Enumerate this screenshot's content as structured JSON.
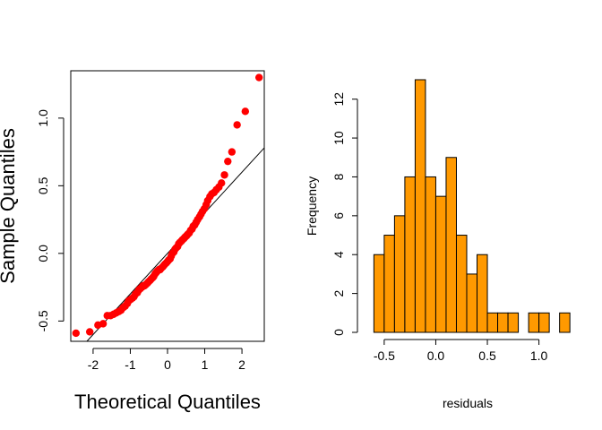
{
  "chart_data": [
    {
      "type": "scatter",
      "subtype": "qq-plot",
      "title": "",
      "xlabel": "Theoretical Quantiles",
      "ylabel": "Sample Quantiles",
      "xlim": [
        -2.6,
        2.6
      ],
      "ylim": [
        -0.65,
        1.35
      ],
      "xticks": [
        -2,
        -1,
        0,
        1,
        2
      ],
      "xtick_labels": [
        "-2",
        "-1",
        "0",
        "1",
        "2"
      ],
      "yticks": [
        -0.5,
        0.0,
        0.5,
        1.0
      ],
      "ytick_labels": [
        "-0.5",
        "0.0",
        "0.5",
        "1.0"
      ],
      "point_color": "#ff0000",
      "reference_line": {
        "intercept": 0.0,
        "slope": 0.3,
        "color": "#000000"
      },
      "points": [
        [
          -2.46,
          -0.59
        ],
        [
          -2.09,
          -0.58
        ],
        [
          -1.87,
          -0.53
        ],
        [
          -1.73,
          -0.52
        ],
        [
          -1.62,
          -0.46
        ],
        [
          -1.53,
          -0.46
        ],
        [
          -1.45,
          -0.45
        ],
        [
          -1.38,
          -0.44
        ],
        [
          -1.31,
          -0.43
        ],
        [
          -1.25,
          -0.42
        ],
        [
          -1.19,
          -0.4
        ],
        [
          -1.14,
          -0.39
        ],
        [
          -1.08,
          -0.37
        ],
        [
          -1.04,
          -0.35
        ],
        [
          -0.99,
          -0.34
        ],
        [
          -0.94,
          -0.33
        ],
        [
          -0.9,
          -0.32
        ],
        [
          -0.86,
          -0.3
        ],
        [
          -0.81,
          -0.29
        ],
        [
          -0.77,
          -0.27
        ],
        [
          -0.73,
          -0.26
        ],
        [
          -0.69,
          -0.25
        ],
        [
          -0.66,
          -0.24
        ],
        [
          -0.62,
          -0.24
        ],
        [
          -0.58,
          -0.23
        ],
        [
          -0.54,
          -0.22
        ],
        [
          -0.51,
          -0.21
        ],
        [
          -0.47,
          -0.2
        ],
        [
          -0.44,
          -0.19
        ],
        [
          -0.4,
          -0.18
        ],
        [
          -0.37,
          -0.17
        ],
        [
          -0.33,
          -0.15
        ],
        [
          -0.3,
          -0.14
        ],
        [
          -0.27,
          -0.13
        ],
        [
          -0.23,
          -0.12
        ],
        [
          -0.2,
          -0.12
        ],
        [
          -0.17,
          -0.11
        ],
        [
          -0.13,
          -0.1
        ],
        [
          -0.1,
          -0.09
        ],
        [
          -0.07,
          -0.08
        ],
        [
          -0.03,
          -0.07
        ],
        [
          0.0,
          -0.06
        ],
        [
          0.03,
          -0.05
        ],
        [
          0.07,
          -0.04
        ],
        [
          0.1,
          -0.02
        ],
        [
          0.13,
          0.0
        ],
        [
          0.17,
          0.01
        ],
        [
          0.2,
          0.03
        ],
        [
          0.23,
          0.04
        ],
        [
          0.27,
          0.05
        ],
        [
          0.3,
          0.07
        ],
        [
          0.33,
          0.08
        ],
        [
          0.37,
          0.09
        ],
        [
          0.4,
          0.1
        ],
        [
          0.44,
          0.11
        ],
        [
          0.47,
          0.12
        ],
        [
          0.51,
          0.13
        ],
        [
          0.54,
          0.14
        ],
        [
          0.58,
          0.15
        ],
        [
          0.62,
          0.17
        ],
        [
          0.66,
          0.18
        ],
        [
          0.69,
          0.2
        ],
        [
          0.73,
          0.21
        ],
        [
          0.77,
          0.23
        ],
        [
          0.81,
          0.25
        ],
        [
          0.86,
          0.27
        ],
        [
          0.9,
          0.29
        ],
        [
          0.94,
          0.31
        ],
        [
          0.99,
          0.33
        ],
        [
          1.04,
          0.36
        ],
        [
          1.08,
          0.39
        ],
        [
          1.14,
          0.42
        ],
        [
          1.19,
          0.44
        ],
        [
          1.25,
          0.45
        ],
        [
          1.31,
          0.47
        ],
        [
          1.38,
          0.49
        ],
        [
          1.45,
          0.52
        ],
        [
          1.53,
          0.58
        ],
        [
          1.62,
          0.68
        ],
        [
          1.73,
          0.75
        ],
        [
          1.87,
          0.95
        ],
        [
          2.09,
          1.05
        ],
        [
          2.46,
          1.3
        ]
      ]
    },
    {
      "type": "bar",
      "subtype": "histogram",
      "title": "",
      "xlabel": "residuals",
      "ylabel": "Frequency",
      "bin_width": 0.1,
      "bin_start": -0.6,
      "bin_edges_start": [
        -0.6,
        -0.5,
        -0.4,
        -0.3,
        -0.2,
        -0.1,
        0.0,
        0.1,
        0.2,
        0.3,
        0.4,
        0.5,
        0.6,
        0.7,
        0.8,
        0.9,
        1.0,
        1.1,
        1.2
      ],
      "values": [
        4,
        5,
        6,
        8,
        13,
        8,
        7,
        9,
        5,
        3,
        4,
        1,
        1,
        1,
        0,
        1,
        1,
        0,
        1
      ],
      "xlim": [
        -0.69,
        1.29
      ],
      "ylim": [
        0,
        13
      ],
      "xticks": [
        -0.5,
        0.0,
        0.5,
        1.0
      ],
      "xtick_labels": [
        "-0.5",
        "0.0",
        "0.5",
        "1.0"
      ],
      "yticks": [
        0,
        2,
        4,
        6,
        8,
        10,
        12
      ],
      "ytick_labels": [
        "0",
        "2",
        "4",
        "6",
        "8",
        "10",
        "12"
      ],
      "bar_color": "#ff9900",
      "bar_border_color": "#000000"
    }
  ]
}
